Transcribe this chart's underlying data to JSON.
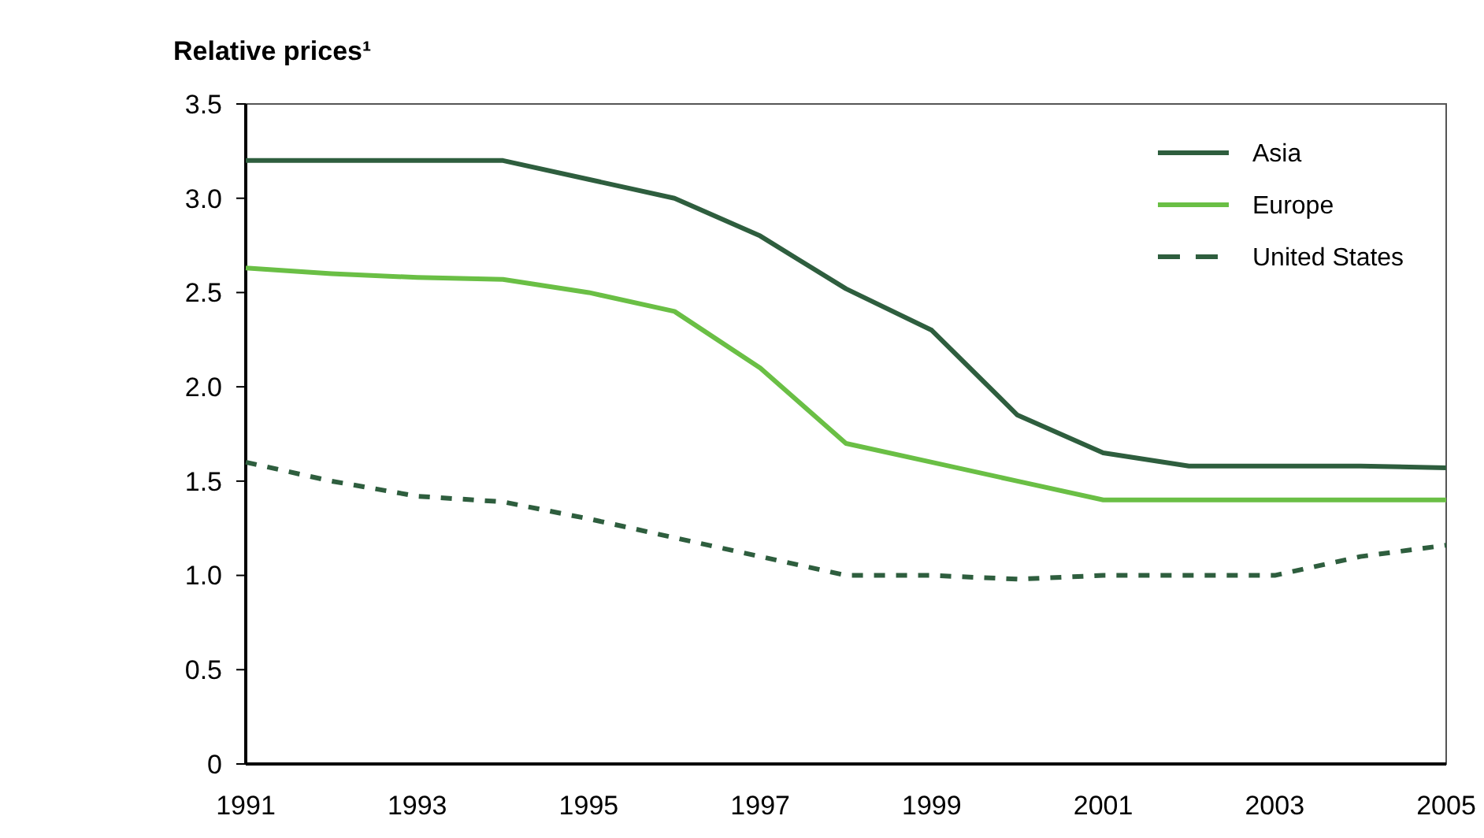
{
  "chart_data": {
    "type": "line",
    "title": "Relative prices¹",
    "x": [
      1991,
      1992,
      1993,
      1994,
      1995,
      1996,
      1997,
      1998,
      1999,
      2000,
      2001,
      2002,
      2003,
      2004,
      2005
    ],
    "series": [
      {
        "name": "Asia",
        "color": "#2e5e3e",
        "values": [
          3.2,
          3.2,
          3.2,
          3.2,
          3.1,
          3.0,
          2.8,
          2.52,
          2.3,
          1.85,
          1.65,
          1.58,
          1.58,
          1.58,
          1.57
        ]
      },
      {
        "name": "Europe",
        "color": "#6abf45",
        "values": [
          2.63,
          2.6,
          2.58,
          2.57,
          2.5,
          2.4,
          2.1,
          1.7,
          1.6,
          1.5,
          1.4,
          1.4,
          1.4,
          1.4,
          1.4
        ]
      },
      {
        "name": "United States",
        "color": "#2e5e3e",
        "line_style": "dashed",
        "values": [
          1.6,
          1.5,
          1.42,
          1.39,
          1.3,
          1.2,
          1.1,
          1.0,
          1.0,
          0.98,
          1.0,
          1.0,
          1.0,
          1.1,
          1.16
        ]
      }
    ],
    "xlim": [
      1991,
      2005
    ],
    "xticks": [
      1991,
      1993,
      1995,
      1997,
      1999,
      2001,
      2003,
      2005
    ],
    "ylim": [
      0,
      3.5
    ],
    "yticks": [
      0,
      0.5,
      {
        "value": 1,
        "label": "1.0"
      },
      1.5,
      {
        "value": 2,
        "label": "2.0"
      },
      2.5,
      {
        "value": 3,
        "label": "3.0"
      },
      3.5
    ],
    "legend": "top right",
    "grid": false,
    "marker": "none"
  }
}
